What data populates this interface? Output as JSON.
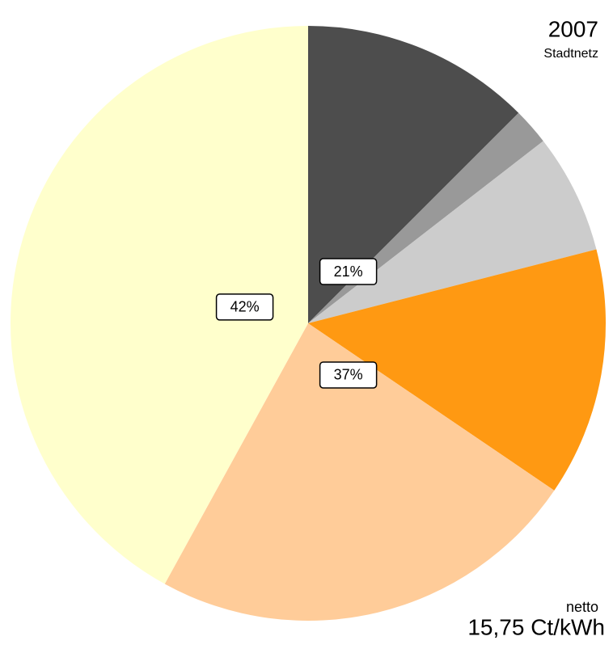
{
  "chart_data": {
    "type": "pie",
    "title": "2007",
    "subtitle": "Stadtnetz",
    "annotations": [
      "netto",
      "15,75 Ct/kWh"
    ],
    "values": [
      12.5,
      2,
      6.5,
      13.5,
      23.5,
      42
    ],
    "colors": [
      "#4d4d4d",
      "#999999",
      "#cccccc",
      "#ff9912",
      "#ffcc99",
      "#ffffcc"
    ],
    "groups": [
      {
        "value": 21,
        "label": "21%"
      },
      {
        "value": 37,
        "label": "37%"
      },
      {
        "value": 42,
        "label": "42%"
      }
    ]
  }
}
